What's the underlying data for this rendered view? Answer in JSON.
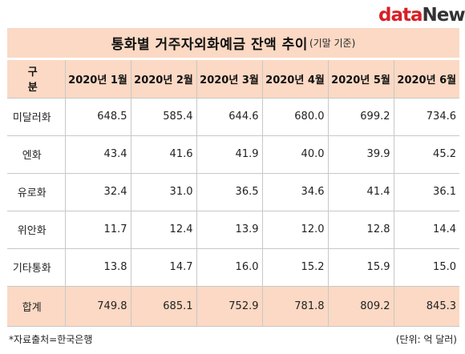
{
  "logo": {
    "part1": "data",
    "part2": "News"
  },
  "title": {
    "main": "통화별 거주자외화예금 잔액 추이",
    "sub": "(기말 기준)"
  },
  "table": {
    "header_label": "구 분",
    "columns": [
      "2020년 1월",
      "2020년 2월",
      "2020년 3월",
      "2020년 4월",
      "2020년 5월",
      "2020년 6월"
    ],
    "rows": [
      {
        "label": "미달러화",
        "values": [
          "648.5",
          "585.4",
          "644.6",
          "680.0",
          "699.2",
          "734.6"
        ]
      },
      {
        "label": "엔화",
        "values": [
          "43.4",
          "41.6",
          "41.9",
          "40.0",
          "39.9",
          "45.2"
        ]
      },
      {
        "label": "유로화",
        "values": [
          "32.4",
          "31.0",
          "36.5",
          "34.6",
          "41.4",
          "36.1"
        ]
      },
      {
        "label": "위안화",
        "values": [
          "11.7",
          "12.4",
          "13.9",
          "12.0",
          "12.8",
          "14.4"
        ]
      },
      {
        "label": "기타통화",
        "values": [
          "13.8",
          "14.7",
          "16.0",
          "15.2",
          "15.9",
          "15.0"
        ]
      }
    ],
    "total": {
      "label": "합계",
      "values": [
        "749.8",
        "685.1",
        "752.9",
        "781.8",
        "809.2",
        "845.3"
      ]
    }
  },
  "footnote": "*자료출처=한국은행",
  "unit": "(단위: 억 달러)",
  "colors": {
    "header_bg": "#fbd9c4",
    "logo_red": "#d62027",
    "logo_dark": "#333333"
  }
}
